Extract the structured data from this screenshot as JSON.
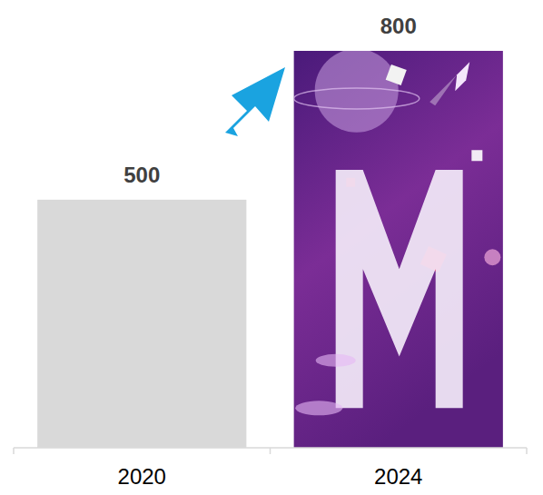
{
  "chart_data": {
    "type": "bar",
    "categories": [
      "2020",
      "2024"
    ],
    "values": [
      500,
      800
    ],
    "colors": [
      "#d9d9d9",
      "#7b2d96"
    ],
    "ylim": [
      0,
      800
    ],
    "data_labels": true,
    "tick_labels": "x",
    "grid": false
  }
}
